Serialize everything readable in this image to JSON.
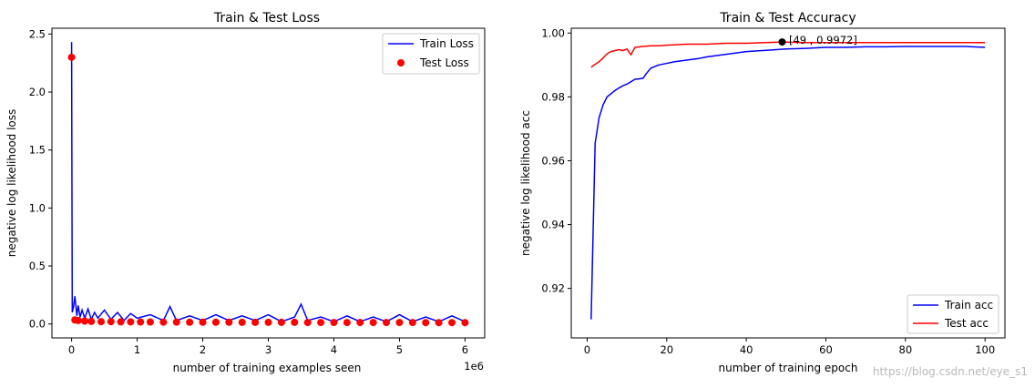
{
  "chart_data": [
    {
      "type": "line",
      "title": "Train & Test Loss",
      "xlabel": "number of training examples seen",
      "ylabel": "negative log likelihood loss",
      "x_offset_label": "1e6",
      "xlim": [
        -0.3,
        6.3
      ],
      "ylim": [
        -0.12,
        2.55
      ],
      "xticks": [
        0,
        1,
        2,
        3,
        4,
        5,
        6
      ],
      "xtick_labels": [
        "0",
        "1",
        "2",
        "3",
        "4",
        "5",
        "6"
      ],
      "yticks": [
        0.0,
        0.5,
        1.0,
        1.5,
        2.0,
        2.5
      ],
      "ytick_labels": [
        "0.0",
        "0.5",
        "1.0",
        "1.5",
        "2.0",
        "2.5"
      ],
      "grid": false,
      "legend_position": "top-right",
      "series": [
        {
          "name": "Train Loss",
          "kind": "line",
          "color": "#0000ff",
          "x": [
            0,
            0.01,
            0.03,
            0.05,
            0.08,
            0.1,
            0.13,
            0.16,
            0.2,
            0.25,
            0.3,
            0.35,
            0.4,
            0.5,
            0.6,
            0.7,
            0.8,
            0.9,
            1.0,
            1.2,
            1.4,
            1.5,
            1.6,
            1.8,
            2.0,
            2.2,
            2.4,
            2.6,
            2.8,
            3.0,
            3.2,
            3.4,
            3.5,
            3.6,
            3.8,
            4.0,
            4.2,
            4.4,
            4.6,
            4.8,
            5.0,
            5.2,
            5.4,
            5.6,
            5.8,
            6.0
          ],
          "y": [
            2.43,
            0.1,
            0.15,
            0.24,
            0.07,
            0.16,
            0.06,
            0.12,
            0.05,
            0.13,
            0.04,
            0.1,
            0.05,
            0.12,
            0.04,
            0.1,
            0.03,
            0.09,
            0.05,
            0.08,
            0.03,
            0.15,
            0.03,
            0.07,
            0.03,
            0.08,
            0.03,
            0.07,
            0.03,
            0.08,
            0.02,
            0.06,
            0.17,
            0.03,
            0.06,
            0.02,
            0.07,
            0.02,
            0.06,
            0.02,
            0.08,
            0.02,
            0.06,
            0.02,
            0.07,
            0.02
          ]
        },
        {
          "name": "Test Loss",
          "kind": "scatter",
          "color": "#ff0000",
          "x": [
            0,
            0.05,
            0.1,
            0.2,
            0.3,
            0.45,
            0.6,
            0.75,
            0.9,
            1.05,
            1.2,
            1.4,
            1.6,
            1.8,
            2.0,
            2.2,
            2.4,
            2.6,
            2.8,
            3.0,
            3.2,
            3.4,
            3.6,
            3.8,
            4.0,
            4.2,
            4.4,
            4.6,
            4.8,
            5.0,
            5.2,
            5.4,
            5.6,
            5.8,
            6.0
          ],
          "y": [
            2.3,
            0.035,
            0.03,
            0.025,
            0.022,
            0.02,
            0.02,
            0.018,
            0.018,
            0.017,
            0.017,
            0.016,
            0.016,
            0.015,
            0.015,
            0.015,
            0.015,
            0.014,
            0.014,
            0.014,
            0.014,
            0.014,
            0.013,
            0.013,
            0.013,
            0.013,
            0.013,
            0.013,
            0.013,
            0.013,
            0.013,
            0.012,
            0.012,
            0.012,
            0.012
          ]
        }
      ]
    },
    {
      "type": "line",
      "title": "Train & Test Accuracy",
      "xlabel": "number of training epoch",
      "ylabel": "negative log likelihood acc",
      "xlim": [
        -4.0,
        105.0
      ],
      "ylim": [
        0.9045,
        1.0015
      ],
      "xticks": [
        0,
        20,
        40,
        60,
        80,
        100
      ],
      "xtick_labels": [
        "0",
        "20",
        "40",
        "60",
        "80",
        "100"
      ],
      "yticks": [
        0.92,
        0.94,
        0.96,
        0.98,
        1.0
      ],
      "ytick_labels": [
        "0.92",
        "0.94",
        "0.96",
        "0.98",
        "1.00"
      ],
      "grid": false,
      "legend_position": "bottom-right",
      "annotation": {
        "x": 49,
        "y": 0.9972,
        "text": "[49 , 0.9972]",
        "color": "#000000"
      },
      "series": [
        {
          "name": "Train acc",
          "kind": "line",
          "color": "#0000ff",
          "x": [
            1,
            2,
            3,
            4,
            5,
            6,
            7,
            8,
            9,
            10,
            12,
            14,
            15,
            16,
            18,
            20,
            22,
            25,
            28,
            30,
            33,
            36,
            40,
            45,
            50,
            55,
            60,
            65,
            70,
            75,
            80,
            85,
            90,
            95,
            100
          ],
          "y": [
            0.9103,
            0.9655,
            0.9735,
            0.9775,
            0.98,
            0.981,
            0.982,
            0.9828,
            0.9835,
            0.984,
            0.9855,
            0.9858,
            0.9875,
            0.989,
            0.99,
            0.9905,
            0.991,
            0.9915,
            0.992,
            0.9925,
            0.993,
            0.9935,
            0.9942,
            0.9946,
            0.995,
            0.9952,
            0.9955,
            0.9955,
            0.9957,
            0.9957,
            0.9958,
            0.9958,
            0.9958,
            0.9958,
            0.9955
          ]
        },
        {
          "name": "Test acc",
          "kind": "line",
          "color": "#ff0000",
          "x": [
            1,
            2,
            3,
            4,
            5,
            6,
            7,
            8,
            9,
            10,
            11,
            12,
            14,
            16,
            18,
            20,
            25,
            30,
            35,
            40,
            45,
            49,
            55,
            60,
            70,
            80,
            90,
            100
          ],
          "y": [
            0.9893,
            0.9902,
            0.991,
            0.9922,
            0.9935,
            0.9942,
            0.9945,
            0.9948,
            0.9945,
            0.995,
            0.9932,
            0.9955,
            0.9958,
            0.996,
            0.996,
            0.9962,
            0.9965,
            0.9965,
            0.9968,
            0.9968,
            0.997,
            0.9972,
            0.997,
            0.997,
            0.997,
            0.997,
            0.997,
            0.997
          ]
        }
      ]
    }
  ],
  "watermark": "https://blog.csdn.net/eye_s1"
}
